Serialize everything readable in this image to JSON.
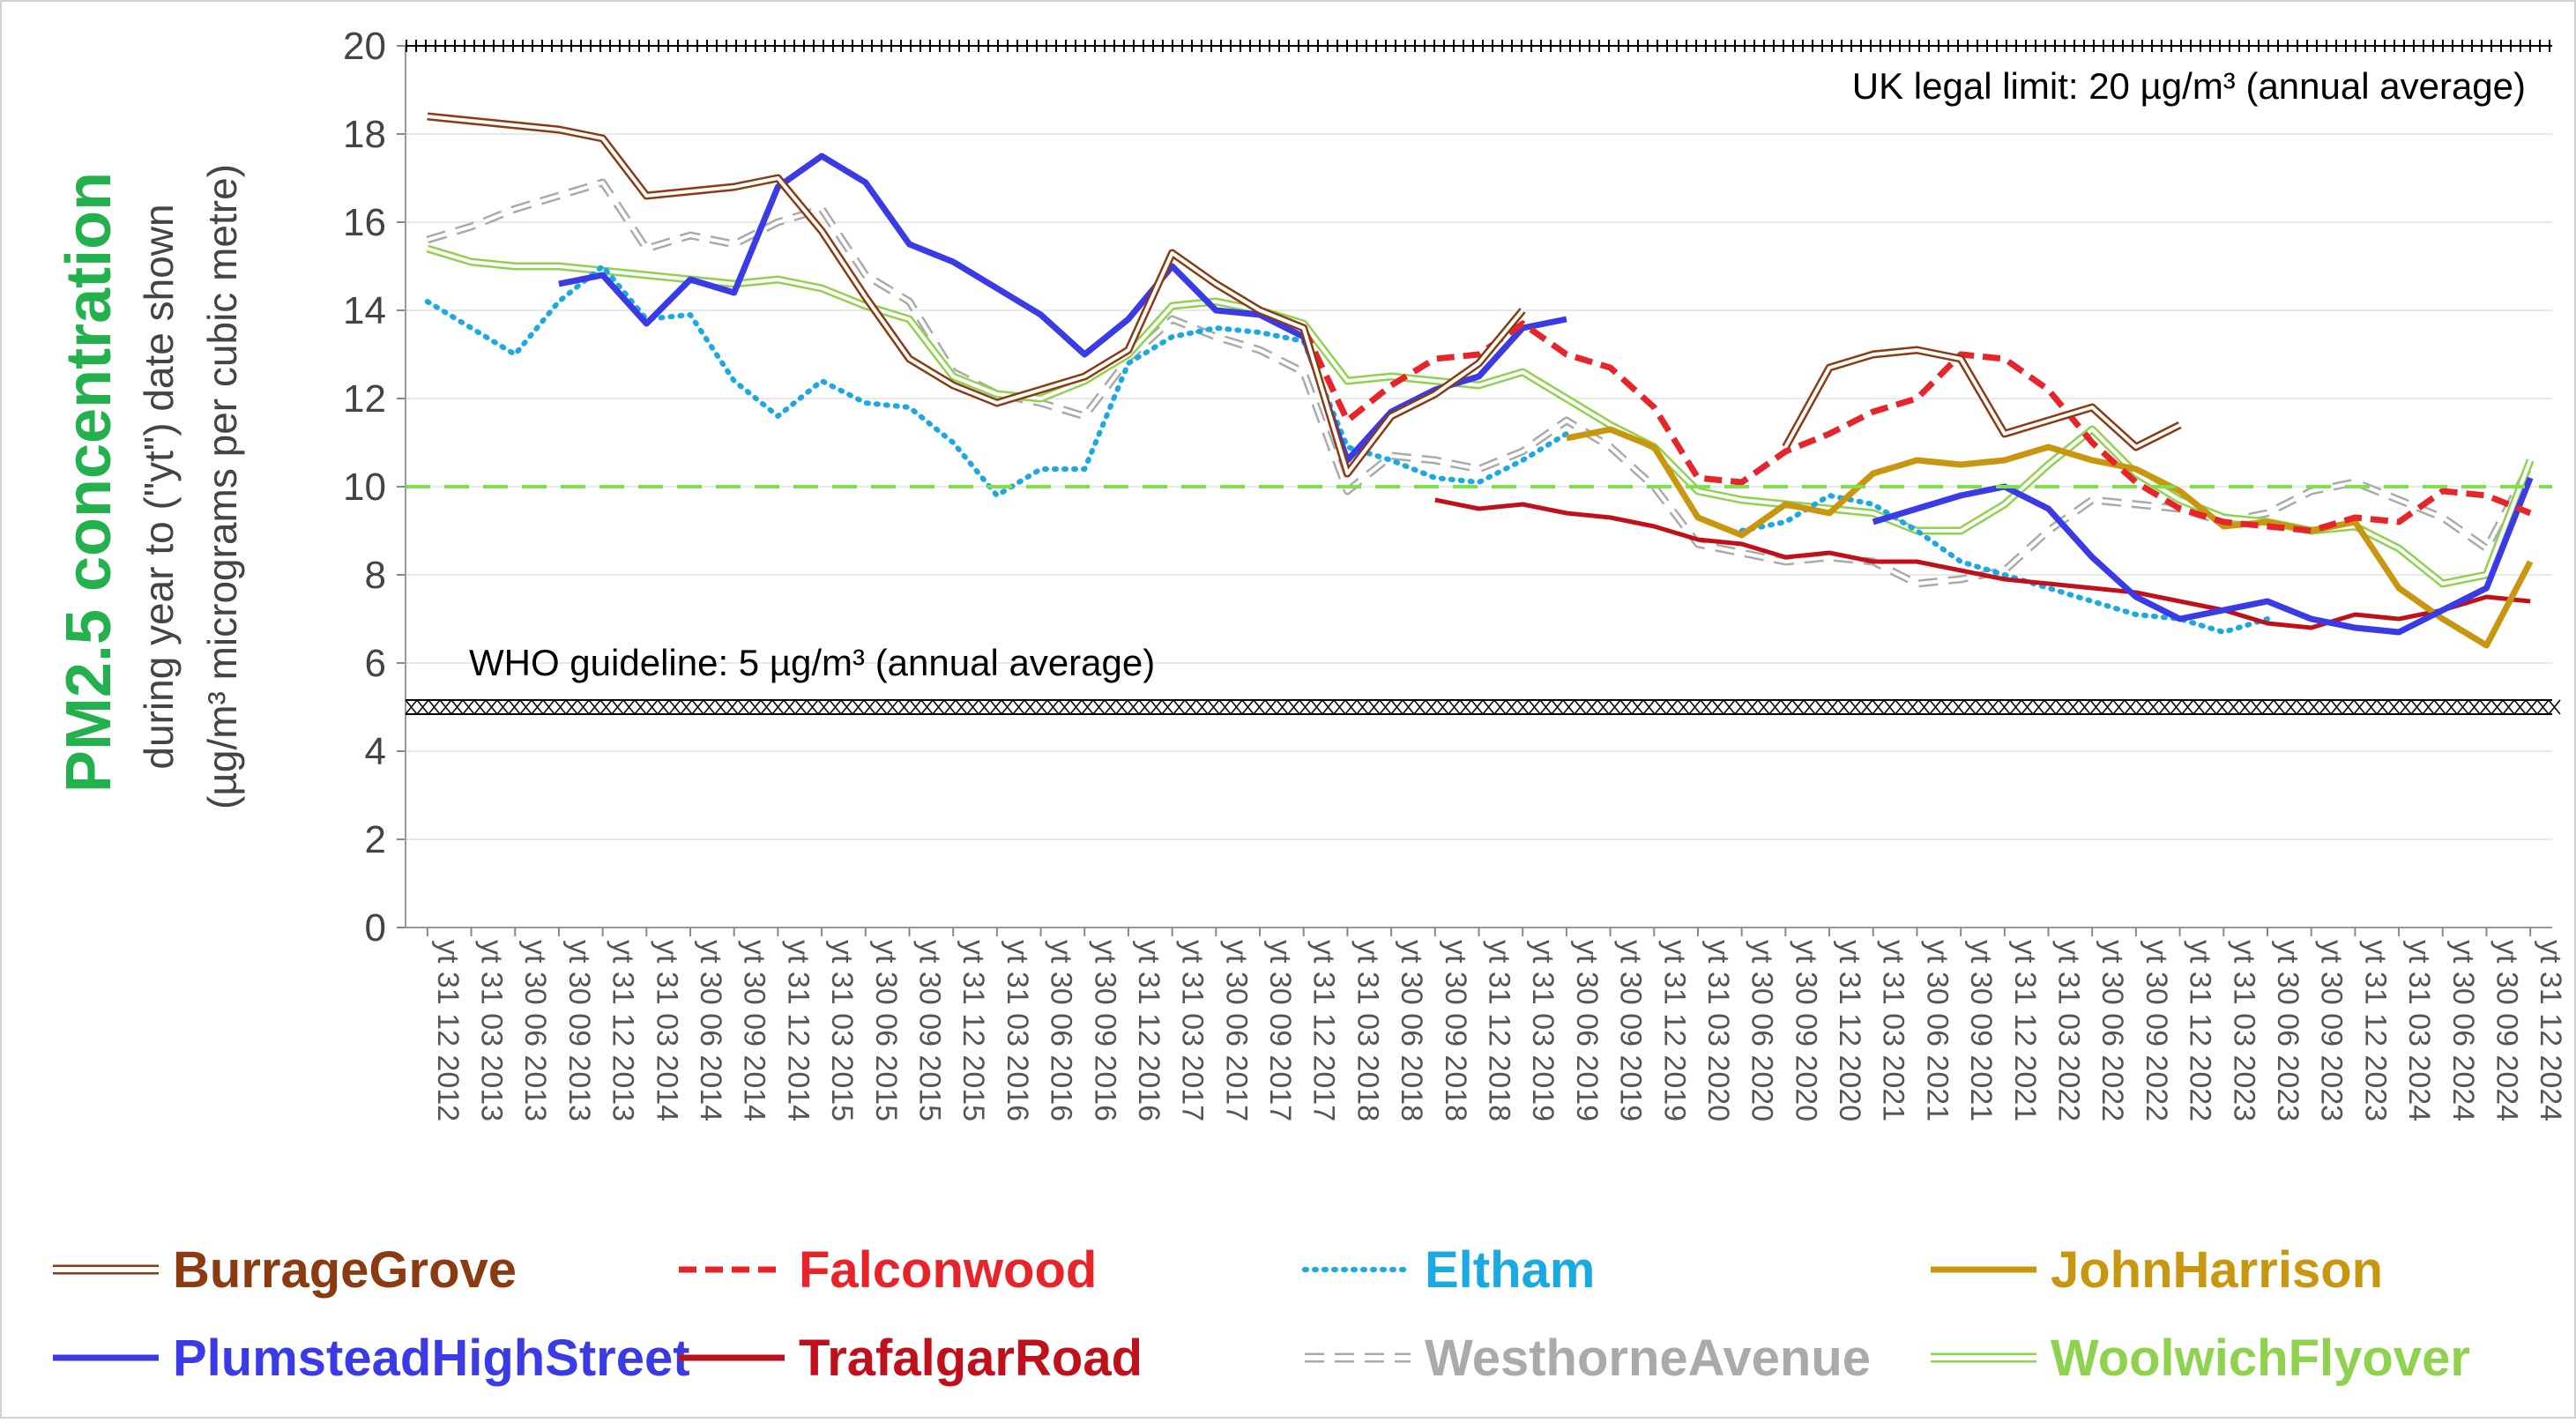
{
  "chart_data": {
    "type": "line",
    "ylabel_main": "PM2.5 concentration",
    "ylabel_sub1": "during year to (\"yt\") date shown",
    "ylabel_sub2": "(µg/m³ micrograms per cubic metre)",
    "ylim": [
      0,
      20
    ],
    "yticks": [
      0,
      2,
      4,
      6,
      8,
      10,
      12,
      14,
      16,
      18,
      20
    ],
    "grid": true,
    "legend_position": "bottom",
    "categories": [
      "yt 31 12 2012",
      "yt 31 03 2013",
      "yt 30 06 2013",
      "yt 30 09 2013",
      "yt 31 12 2013",
      "yt 31 03 2014",
      "yt 30 06 2014",
      "yt 30 09 2014",
      "yt 31 12 2014",
      "yt 31 03 2015",
      "yt 30 06 2015",
      "yt 30 09 2015",
      "yt 31 12 2015",
      "yt 31 03 2016",
      "yt 30 06 2016",
      "yt 30 09 2016",
      "yt 31 12 2016",
      "yt 31 03 2017",
      "yt 30 06 2017",
      "yt 30 09 2017",
      "yt 31 12 2017",
      "yt 31 03 2018",
      "yt 30 06 2018",
      "yt 30 09 2018",
      "yt 31 12 2018",
      "yt 31 03 2019",
      "yt 30 06 2019",
      "yt 30 09 2019",
      "yt 31 12 2019",
      "yt 31 03 2020",
      "yt 30 06 2020",
      "yt 30 09 2020",
      "yt 31 12 2020",
      "yt 31 03 2021",
      "yt 30 06 2021",
      "yt 30 09 2021",
      "yt 31 12 2021",
      "yt 31 03 2022",
      "yt 30 06 2022",
      "yt 30 09 2022",
      "yt 31 12 2022",
      "yt 31 03 2023",
      "yt 30 06 2023",
      "yt 30 09 2023",
      "yt 31 12 2023",
      "yt 31 03 2024",
      "yt 30 06 2024",
      "yt 30 09 2024",
      "yt 31 12 2024"
    ],
    "annotations": [
      {
        "text": "UK legal limit:  20 µg/m³ (annual average)",
        "value": 20
      },
      {
        "text": "WHO guideline:  5 µg/m³ (annual average)",
        "value": 5
      }
    ],
    "reference_line_value": 10,
    "reference_line_color": "#7ee04a",
    "series": [
      {
        "name": "BurrageGrove",
        "color": "#8b3a12",
        "style": "double",
        "values": [
          18.4,
          18.3,
          18.2,
          18.1,
          17.9,
          16.6,
          16.7,
          16.8,
          17.0,
          15.8,
          14.3,
          12.9,
          12.3,
          11.9,
          12.2,
          12.5,
          13.1,
          15.3,
          14.6,
          14.0,
          13.6,
          10.3,
          11.6,
          12.1,
          12.8,
          14.0,
          null,
          null,
          null,
          null,
          null,
          10.9,
          12.7,
          13.0,
          13.1,
          12.9,
          11.2,
          11.5,
          11.8,
          10.9,
          11.4,
          null,
          null,
          null,
          null,
          null,
          null,
          null,
          null
        ]
      },
      {
        "name": "Falconwood",
        "color": "#e8242b",
        "style": "dashed",
        "values": [
          null,
          null,
          null,
          null,
          null,
          null,
          null,
          null,
          null,
          null,
          null,
          null,
          null,
          null,
          null,
          null,
          null,
          null,
          null,
          null,
          13.6,
          11.5,
          12.3,
          12.9,
          13.0,
          13.7,
          13.0,
          12.7,
          11.8,
          10.2,
          10.1,
          10.8,
          11.2,
          11.7,
          12.0,
          13.0,
          12.9,
          12.2,
          11.0,
          10.1,
          9.5,
          9.2,
          9.1,
          9.0,
          9.3,
          9.2,
          9.9,
          9.8,
          9.4
        ]
      },
      {
        "name": "Eltham",
        "color": "#1aa9e0",
        "style": "dotted",
        "values": [
          14.2,
          13.6,
          13.0,
          14.2,
          15.0,
          13.8,
          13.9,
          12.4,
          11.6,
          12.4,
          11.9,
          11.8,
          11.0,
          9.8,
          10.4,
          10.4,
          12.8,
          13.4,
          13.6,
          13.5,
          13.3,
          10.9,
          10.6,
          10.2,
          10.1,
          10.6,
          11.2,
          null,
          null,
          null,
          9.0,
          9.2,
          9.8,
          9.6,
          9.0,
          8.3,
          8.0,
          7.7,
          7.4,
          7.1,
          7.0,
          6.7,
          7.0,
          null,
          null,
          null,
          null,
          null,
          null
        ]
      },
      {
        "name": "JohnHarrison",
        "color": "#c9960f",
        "style": "solid",
        "values": [
          null,
          null,
          null,
          null,
          null,
          null,
          null,
          null,
          null,
          null,
          null,
          null,
          null,
          null,
          null,
          null,
          null,
          null,
          null,
          null,
          null,
          null,
          null,
          null,
          null,
          null,
          11.1,
          11.3,
          10.9,
          9.3,
          8.9,
          9.6,
          9.4,
          10.3,
          10.6,
          10.5,
          10.6,
          10.9,
          10.6,
          10.4,
          9.9,
          9.1,
          9.2,
          9.0,
          9.2,
          7.7,
          7.0,
          6.4,
          8.3
        ]
      },
      {
        "name": "PlumsteadHighStreet",
        "color": "#3a3ae6",
        "style": "solid",
        "values": [
          null,
          null,
          null,
          14.6,
          14.8,
          13.7,
          14.7,
          14.4,
          16.8,
          17.5,
          16.9,
          15.5,
          15.1,
          14.5,
          13.9,
          13.0,
          13.8,
          15.0,
          14.0,
          13.9,
          13.4,
          10.6,
          11.7,
          12.2,
          12.5,
          13.6,
          13.8,
          null,
          null,
          null,
          null,
          null,
          null,
          9.2,
          9.5,
          9.8,
          10.0,
          9.5,
          8.4,
          7.5,
          7.0,
          7.2,
          7.4,
          7.0,
          6.8,
          6.7,
          7.2,
          7.7,
          10.2
        ]
      },
      {
        "name": "TrafalgarRoad",
        "color": "#c0101b",
        "style": "solid",
        "values": [
          null,
          null,
          null,
          null,
          null,
          null,
          null,
          null,
          null,
          null,
          null,
          null,
          null,
          null,
          null,
          null,
          null,
          null,
          null,
          null,
          null,
          null,
          null,
          9.7,
          9.5,
          9.6,
          9.4,
          9.3,
          9.1,
          8.8,
          8.7,
          8.4,
          8.5,
          8.3,
          8.3,
          8.1,
          7.9,
          7.8,
          7.7,
          7.6,
          7.4,
          7.2,
          6.9,
          6.8,
          7.1,
          7.0,
          7.2,
          7.5,
          7.4
        ]
      },
      {
        "name": "WesthorneAvenue",
        "color": "#aaaaaa",
        "style": "double-dashed",
        "values": [
          15.6,
          15.9,
          16.3,
          16.6,
          16.9,
          15.4,
          15.7,
          15.5,
          16.0,
          16.3,
          14.8,
          14.2,
          12.6,
          12.1,
          11.9,
          11.6,
          12.9,
          13.8,
          13.4,
          13.1,
          12.6,
          9.9,
          10.7,
          10.6,
          10.4,
          10.8,
          11.5,
          10.9,
          10.0,
          8.7,
          8.5,
          8.3,
          8.4,
          8.3,
          7.8,
          7.9,
          8.1,
          9.0,
          9.7,
          9.6,
          9.5,
          9.2,
          9.4,
          9.9,
          10.1,
          9.7,
          9.3,
          8.6,
          10.5
        ]
      },
      {
        "name": "WoolwichFlyover",
        "color": "#8ed24e",
        "style": "double",
        "values": [
          15.4,
          15.1,
          15.0,
          15.0,
          14.9,
          14.8,
          14.7,
          14.6,
          14.7,
          14.5,
          14.1,
          13.8,
          12.5,
          12.1,
          12.0,
          12.4,
          13.0,
          14.1,
          14.2,
          14.0,
          13.7,
          12.4,
          12.5,
          12.4,
          12.3,
          12.6,
          12.0,
          11.4,
          10.9,
          9.9,
          9.7,
          9.6,
          9.5,
          9.4,
          9.0,
          9.0,
          9.6,
          10.5,
          11.3,
          10.3,
          9.7,
          9.3,
          9.2,
          9.0,
          9.1,
          8.6,
          7.8,
          8.0,
          10.6
        ]
      }
    ]
  }
}
